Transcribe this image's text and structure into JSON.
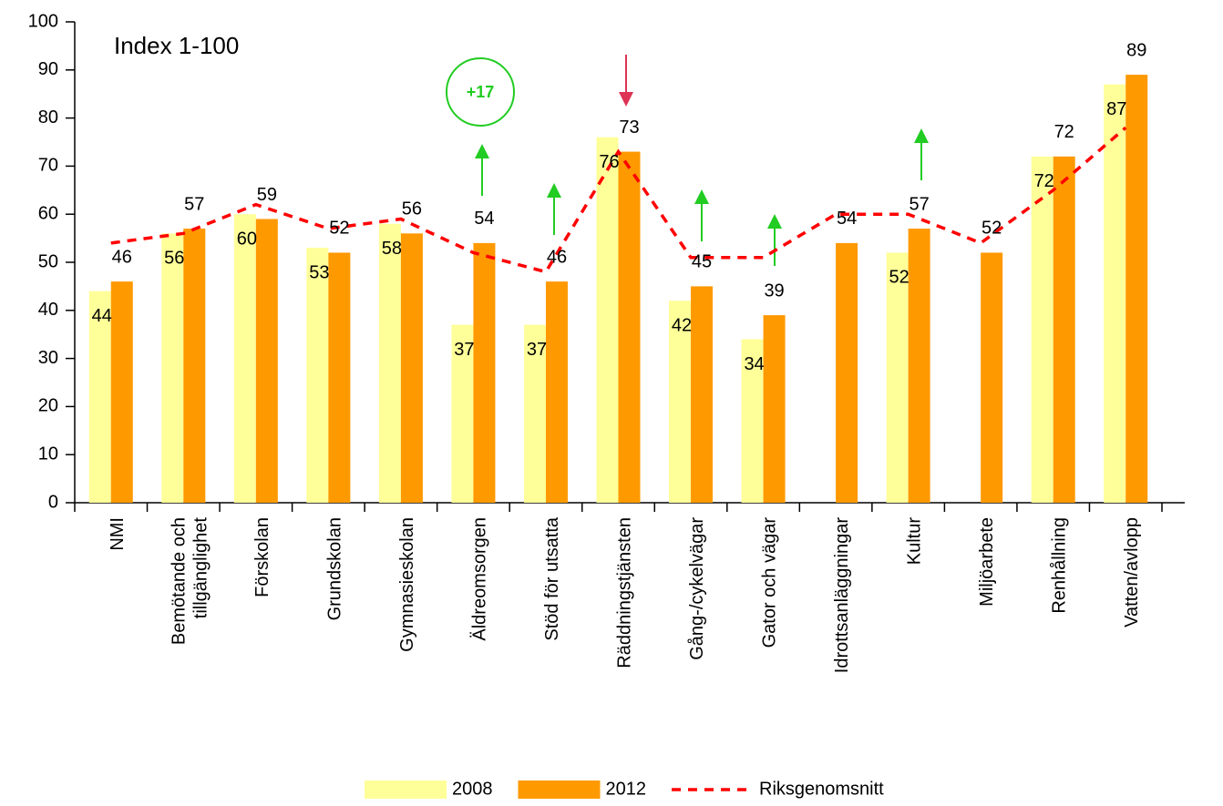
{
  "chart_data": {
    "type": "bar",
    "label": "Index 1-100",
    "annotation": "+17",
    "categories": [
      "NMI",
      "Bemötande och\ntillgänglighet",
      "Förskolan",
      "Grundskolan",
      "Gymnasieskolan",
      "Äldreomsorgen",
      "Stöd för utsatta",
      "Räddningstjänsten",
      "Gång-/cykelvägar",
      "Gator och vägar",
      "Idrottsanläggningar",
      "Kultur",
      "Miljöarbete",
      "Renhållning",
      "Vatten/avlopp"
    ],
    "series": [
      {
        "name": "2008",
        "color": "#ffff99",
        "values": [
          44,
          56,
          60,
          53,
          58,
          37,
          37,
          76,
          42,
          34,
          null,
          52,
          null,
          72,
          87
        ]
      },
      {
        "name": "2012",
        "color": "#ff9900",
        "values": [
          46,
          57,
          59,
          52,
          56,
          54,
          46,
          73,
          45,
          39,
          54,
          57,
          52,
          72,
          89
        ]
      },
      {
        "name": "Riksgenomsnitt",
        "type": "line",
        "color": "#ff0000",
        "values": [
          54,
          56,
          62,
          57,
          59,
          52,
          48,
          73,
          51,
          51,
          60,
          60,
          54,
          65,
          78
        ]
      }
    ],
    "ylim": [
      0,
      100
    ],
    "yticks": [
      0,
      10,
      20,
      30,
      40,
      50,
      60,
      70,
      80,
      90,
      100
    ]
  }
}
